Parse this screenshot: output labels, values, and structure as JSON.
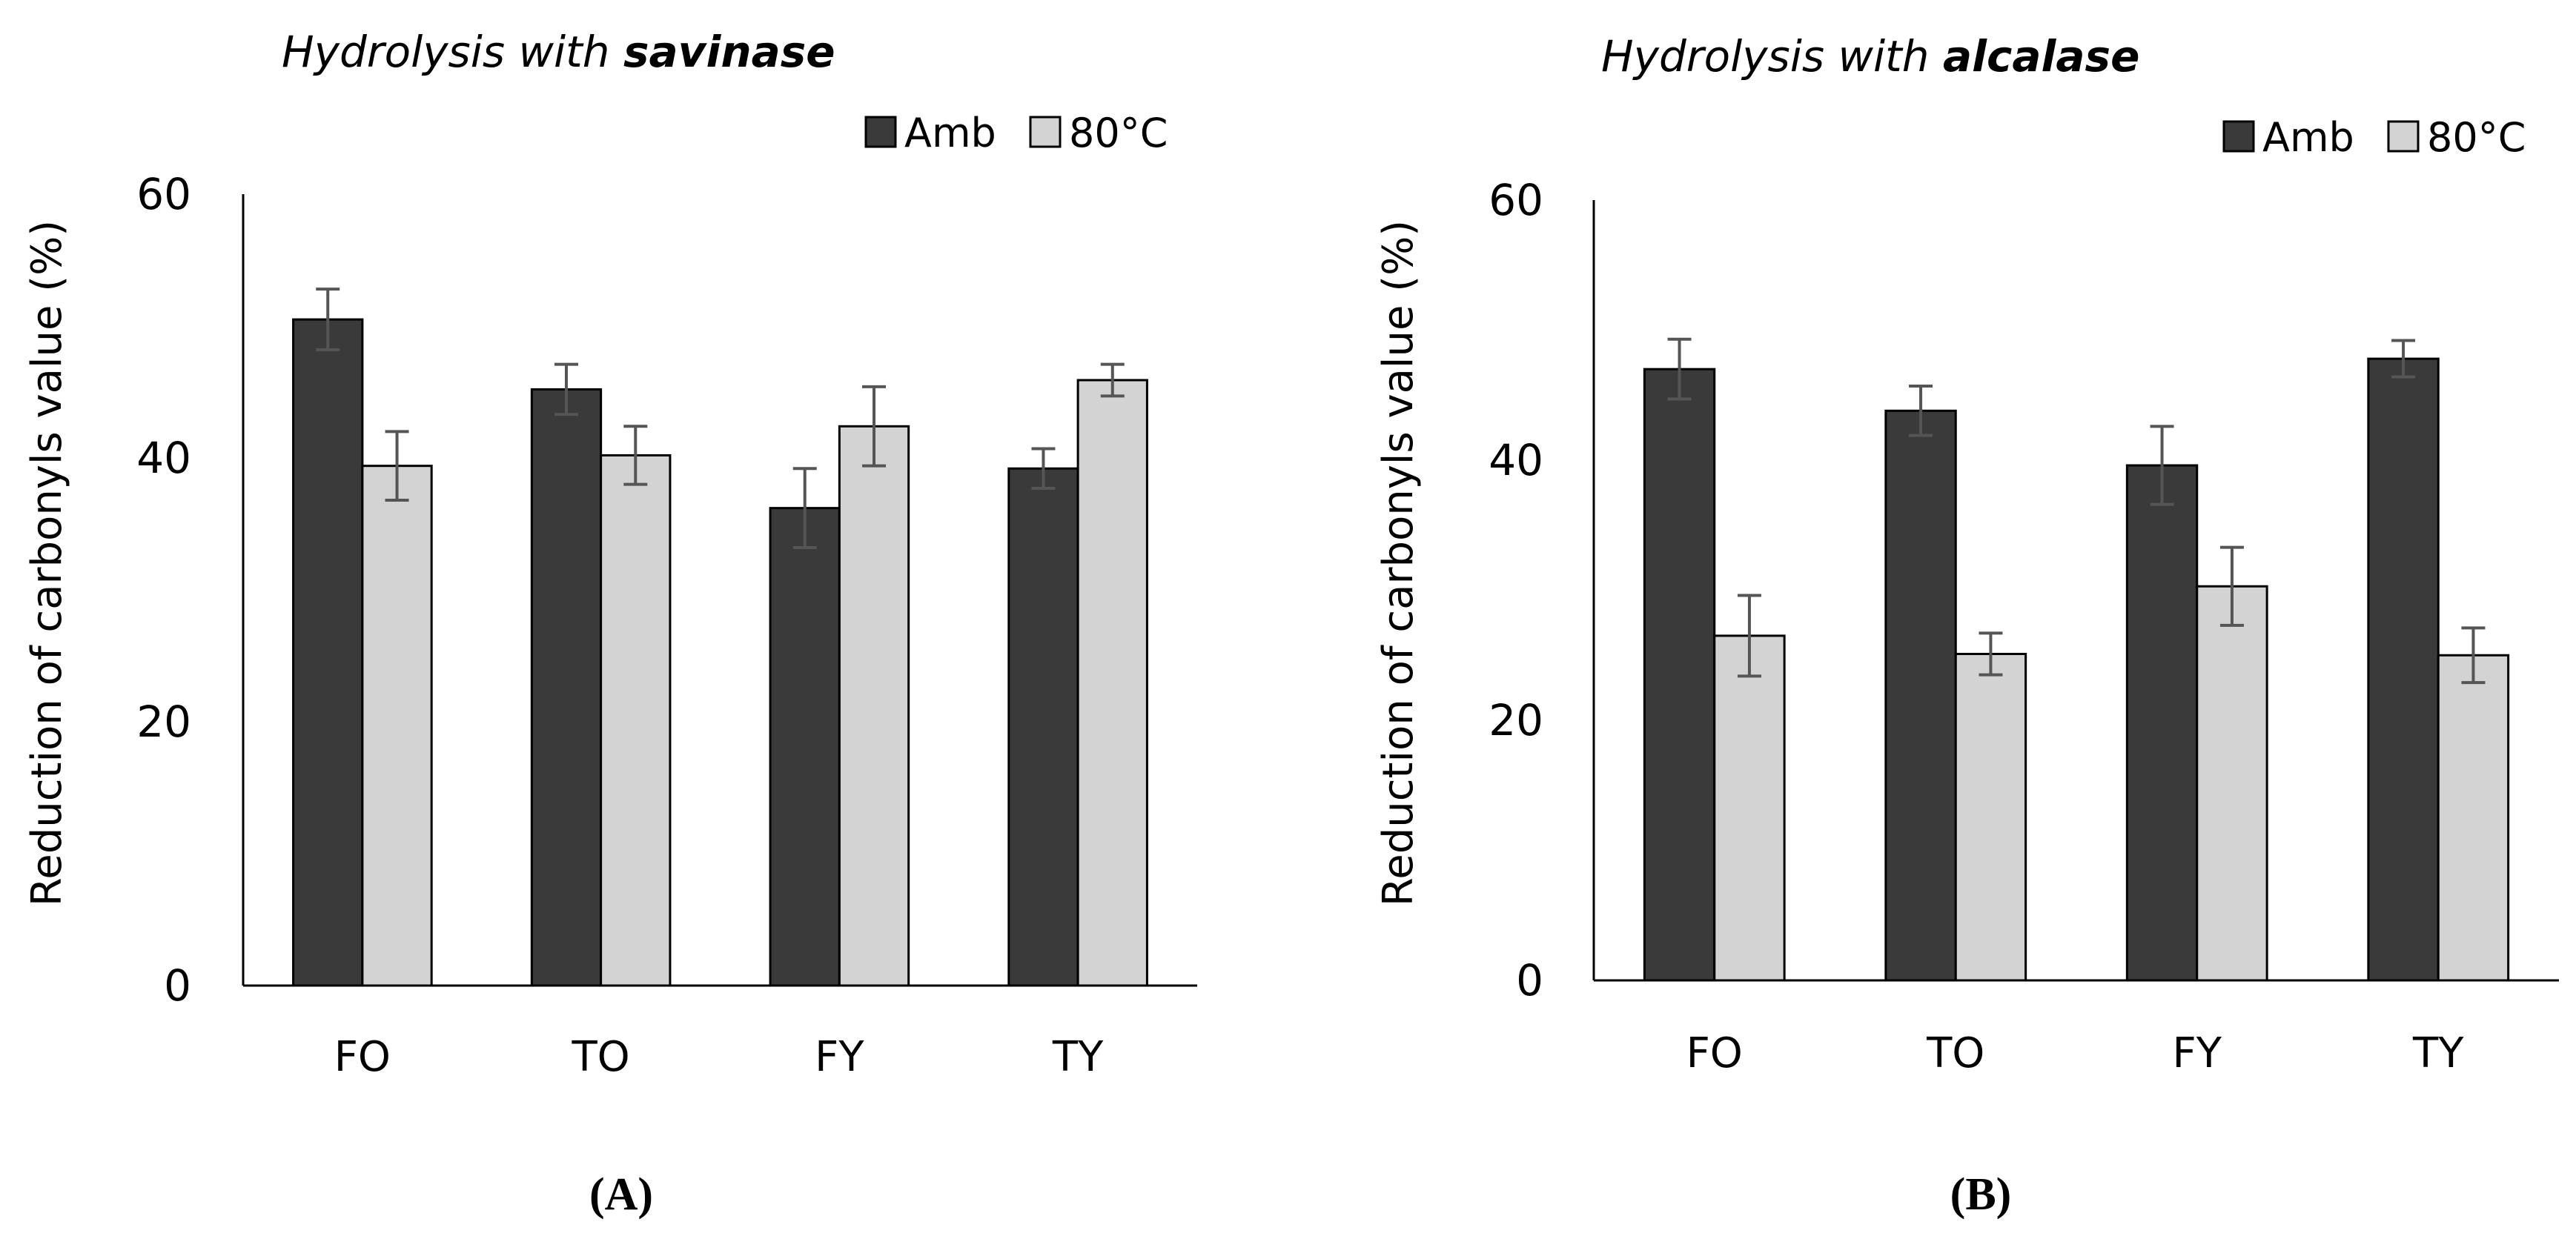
{
  "chart_data": [
    {
      "type": "bar",
      "title_prefix": "Hydrolysis with ",
      "title_enzyme": "savinase",
      "panel_label_open": "(",
      "panel_label_letter": "A",
      "panel_label_close": ")",
      "ylabel": "Reduction of carbonyls value (%)",
      "xlabel": "",
      "ylim": [
        0,
        60
      ],
      "yticks": [
        0,
        20,
        40,
        60
      ],
      "categories": [
        "FO",
        "TO",
        "FY",
        "TY"
      ],
      "legend_position": "top-right",
      "series": [
        {
          "name": "Amb",
          "color": "#3a3a3a",
          "values": [
            50.5,
            45.2,
            36.2,
            39.2
          ],
          "errors": [
            2.3,
            1.9,
            3.0,
            1.5
          ]
        },
        {
          "name": "80°C",
          "color": "#d3d3d3",
          "values": [
            39.4,
            40.2,
            42.4,
            45.9
          ],
          "errors": [
            2.6,
            2.2,
            3.0,
            1.2
          ]
        }
      ]
    },
    {
      "type": "bar",
      "title_prefix": "Hydrolysis with ",
      "title_enzyme": "alcalase",
      "panel_label_open": "(",
      "panel_label_letter": "B",
      "panel_label_close": ")",
      "ylabel": "Reduction of carbonyls value (%)",
      "xlabel": "",
      "ylim": [
        0,
        60
      ],
      "yticks": [
        0,
        20,
        40,
        60
      ],
      "categories": [
        "FO",
        "TO",
        "FY",
        "TY"
      ],
      "legend_position": "top-right",
      "series": [
        {
          "name": "Amb",
          "color": "#3a3a3a",
          "values": [
            47.0,
            43.8,
            39.6,
            47.8
          ],
          "errors": [
            2.3,
            1.9,
            3.0,
            1.4
          ]
        },
        {
          "name": "80°C",
          "color": "#d3d3d3",
          "values": [
            26.5,
            25.1,
            30.3,
            25.0
          ],
          "errors": [
            3.1,
            1.6,
            3.0,
            2.1
          ]
        }
      ]
    }
  ]
}
